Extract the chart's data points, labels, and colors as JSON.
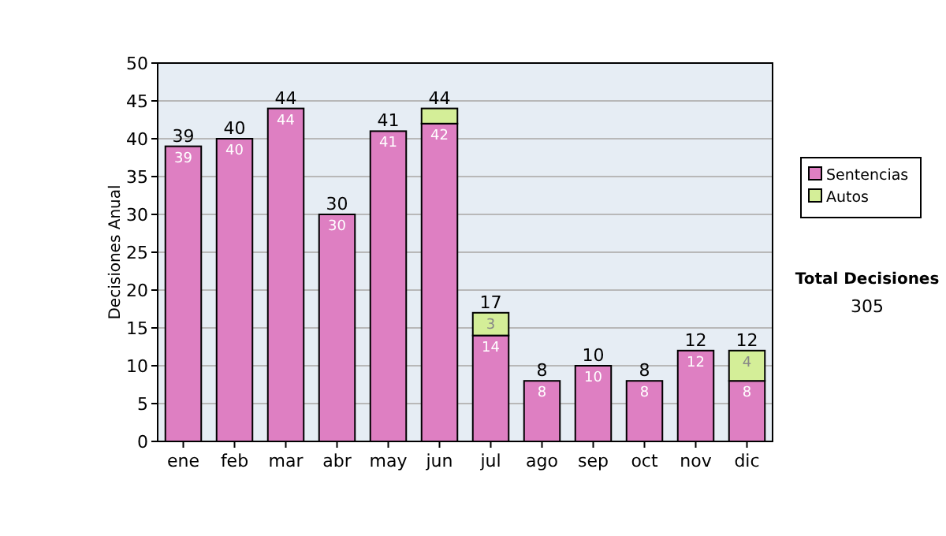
{
  "chart_data": {
    "type": "bar",
    "stacked": true,
    "ylabel": "Decisiones Anual",
    "categories": [
      "ene",
      "feb",
      "mar",
      "abr",
      "may",
      "jun",
      "jul",
      "ago",
      "sep",
      "oct",
      "nov",
      "dic"
    ],
    "series": [
      {
        "name": "Sentencias",
        "color": "#de7fc2",
        "values": [
          39,
          40,
          44,
          30,
          41,
          42,
          14,
          8,
          10,
          8,
          12,
          8
        ],
        "value_labels": [
          "39",
          "40",
          "44",
          "30",
          "41",
          "42",
          "14",
          "8",
          "10",
          "8",
          "12",
          "8"
        ]
      },
      {
        "name": "Autos",
        "color": "#d4ee98",
        "values": [
          0,
          0,
          0,
          0,
          0,
          2,
          3,
          0,
          0,
          0,
          0,
          4
        ],
        "value_labels": [
          null,
          null,
          null,
          null,
          null,
          null,
          "3",
          null,
          null,
          null,
          null,
          "4"
        ]
      }
    ],
    "totals": [
      "39",
      "40",
      "44",
      "30",
      "41",
      "44",
      "17",
      "8",
      "10",
      "8",
      "12",
      "12"
    ],
    "ylim": [
      0,
      50
    ],
    "yticks": [
      0,
      5,
      10,
      15,
      20,
      25,
      30,
      35,
      40,
      45,
      50
    ],
    "grid": "y",
    "legend": "right",
    "annotations": [
      "Total Decisiones",
      "305"
    ]
  }
}
